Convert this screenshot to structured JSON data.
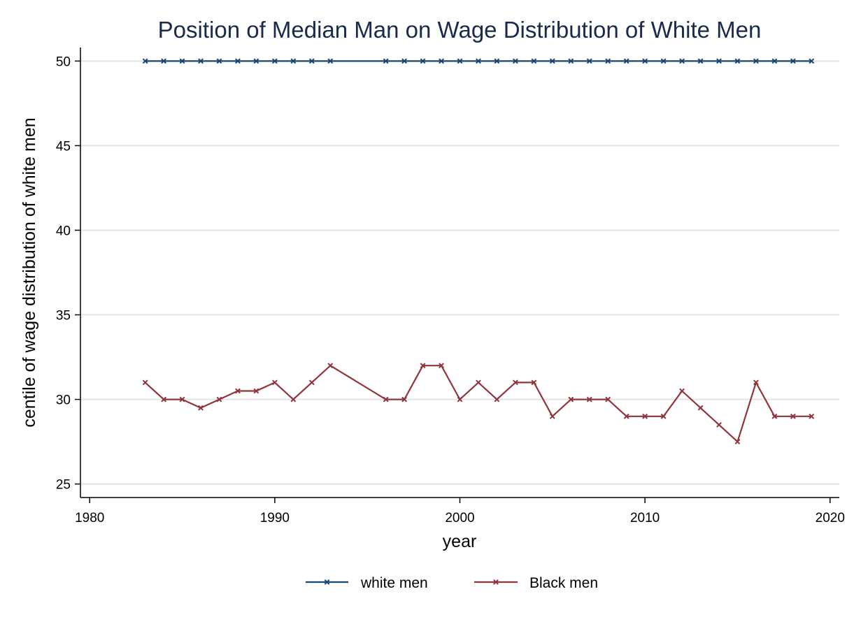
{
  "chart_data": {
    "type": "line",
    "title": "Position of Median Man on Wage Distribution of White Men",
    "xlabel": "year",
    "ylabel": "centile of wage distribution of white men",
    "xlim": [
      1979.5,
      2020.5
    ],
    "ylim": [
      24.2,
      50.8
    ],
    "x_ticks": [
      1980,
      1990,
      2000,
      2010,
      2020
    ],
    "y_ticks": [
      25,
      30,
      35,
      40,
      45,
      50
    ],
    "grid": "horizontal",
    "legend_position": "bottom",
    "series": [
      {
        "name": "white men",
        "color": "#1a476f",
        "marker": "x",
        "points": [
          [
            1983,
            50
          ],
          [
            1984,
            50
          ],
          [
            1985,
            50
          ],
          [
            1986,
            50
          ],
          [
            1987,
            50
          ],
          [
            1988,
            50
          ],
          [
            1989,
            50
          ],
          [
            1990,
            50
          ],
          [
            1991,
            50
          ],
          [
            1992,
            50
          ],
          [
            1993,
            50
          ],
          [
            1996,
            50
          ],
          [
            1997,
            50
          ],
          [
            1998,
            50
          ],
          [
            1999,
            50
          ],
          [
            2000,
            50
          ],
          [
            2001,
            50
          ],
          [
            2002,
            50
          ],
          [
            2003,
            50
          ],
          [
            2004,
            50
          ],
          [
            2005,
            50
          ],
          [
            2006,
            50
          ],
          [
            2007,
            50
          ],
          [
            2008,
            50
          ],
          [
            2009,
            50
          ],
          [
            2010,
            50
          ],
          [
            2011,
            50
          ],
          [
            2012,
            50
          ],
          [
            2013,
            50
          ],
          [
            2014,
            50
          ],
          [
            2015,
            50
          ],
          [
            2016,
            50
          ],
          [
            2017,
            50
          ],
          [
            2018,
            50
          ],
          [
            2019,
            50
          ]
        ]
      },
      {
        "name": "Black men",
        "color": "#90353b",
        "marker": "x",
        "points": [
          [
            1983,
            31
          ],
          [
            1984,
            30
          ],
          [
            1985,
            30
          ],
          [
            1986,
            29.5
          ],
          [
            1987,
            30
          ],
          [
            1988,
            30.5
          ],
          [
            1989,
            30.5
          ],
          [
            1990,
            31
          ],
          [
            1991,
            30
          ],
          [
            1992,
            31
          ],
          [
            1993,
            32
          ],
          [
            1996,
            30
          ],
          [
            1997,
            30
          ],
          [
            1998,
            32
          ],
          [
            1999,
            32
          ],
          [
            2000,
            30
          ],
          [
            2001,
            31
          ],
          [
            2002,
            30
          ],
          [
            2003,
            31
          ],
          [
            2004,
            31
          ],
          [
            2005,
            29
          ],
          [
            2006,
            30
          ],
          [
            2007,
            30
          ],
          [
            2008,
            30
          ],
          [
            2009,
            29
          ],
          [
            2010,
            29
          ],
          [
            2011,
            29
          ],
          [
            2012,
            30.5
          ],
          [
            2013,
            29.5
          ],
          [
            2014,
            28.5
          ],
          [
            2015,
            27.5
          ],
          [
            2016,
            31
          ],
          [
            2017,
            29
          ],
          [
            2018,
            29
          ],
          [
            2019,
            29
          ]
        ]
      }
    ]
  }
}
